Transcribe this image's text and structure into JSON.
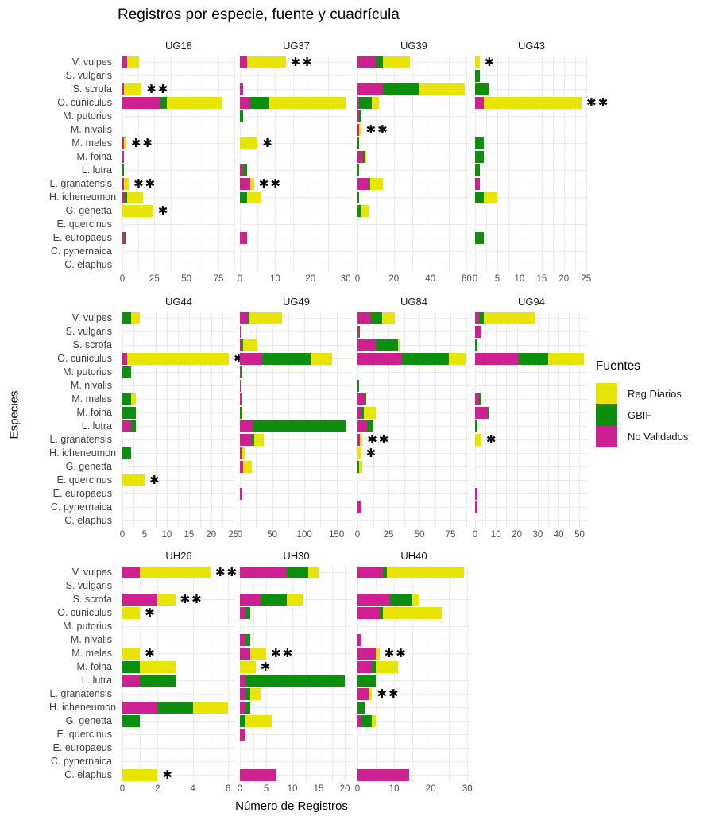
{
  "chart_data": {
    "type": "bar",
    "orientation": "horizontal",
    "stacked": true,
    "title": "Registros por especie, fuente y cuadrícula",
    "xlabel": "Número de Registros",
    "ylabel": "Especies",
    "grid": true,
    "legend": {
      "title": "Fuentes",
      "position": "right",
      "entries": [
        {
          "label": "Reg Diarios",
          "color": "#E8E406"
        },
        {
          "label": "GBIF",
          "color": "#0E8E0E"
        },
        {
          "label": "No Validados",
          "color": "#CD2192"
        }
      ]
    },
    "colors": {
      "no_validados": "#CD2192",
      "gbif": "#0E8E0E",
      "reg_diarios": "#E8E406"
    },
    "stack_order": [
      "no_validados",
      "gbif",
      "reg_diarios"
    ],
    "species": [
      "V. vulpes",
      "S. vulgaris",
      "S. scrofa",
      "O. cuniculus",
      "M. putorius",
      "M. nivalis",
      "M. meles",
      "M. foina",
      "L. lutra",
      "L. granatensis",
      "H. icheneumon",
      "G. genetta",
      "E. quercinus",
      "E. europaeus",
      "C. pynernaica",
      "C. elaphus"
    ],
    "layout": {
      "bands": [
        [
          "UG18",
          "UG37",
          "UG39",
          "UG43"
        ],
        [
          "UG44",
          "UG49",
          "UG84",
          "UG94"
        ],
        [
          "UH26",
          "UH30",
          "UH40"
        ]
      ]
    },
    "facets": [
      {
        "name": "UG18",
        "ticks": [
          0,
          25,
          50,
          75
        ],
        "xmax": 88,
        "values": [
          [
            4,
            0,
            9
          ],
          [
            0,
            0,
            0
          ],
          [
            1,
            0,
            14
          ],
          [
            30,
            5,
            43
          ],
          [
            0,
            0,
            0
          ],
          [
            0,
            0,
            0
          ],
          [
            1,
            0,
            2
          ],
          [
            1,
            0,
            0
          ],
          [
            0,
            1,
            0
          ],
          [
            1,
            0,
            4
          ],
          [
            2,
            2,
            12
          ],
          [
            0,
            0,
            24
          ],
          [
            0,
            0,
            0
          ],
          [
            2,
            1,
            0
          ],
          [
            0,
            0,
            0
          ],
          [
            0,
            0,
            0
          ]
        ],
        "stars": [
          "",
          "",
          "**",
          "",
          "",
          "",
          "**",
          "",
          "",
          "**",
          "",
          "*",
          "",
          "",
          "",
          ""
        ]
      },
      {
        "name": "UG37",
        "ticks": [
          0,
          10,
          20,
          30
        ],
        "xmax": 32,
        "values": [
          [
            2,
            0,
            11
          ],
          [
            0,
            0,
            0
          ],
          [
            1,
            0,
            0
          ],
          [
            3,
            5,
            22
          ],
          [
            0,
            1,
            0
          ],
          [
            0,
            0,
            0
          ],
          [
            0,
            0,
            5
          ],
          [
            0,
            0,
            0
          ],
          [
            1,
            1,
            0
          ],
          [
            3,
            0,
            1
          ],
          [
            0,
            2,
            4
          ],
          [
            0,
            0,
            0
          ],
          [
            0,
            0,
            0
          ],
          [
            2,
            0,
            0
          ],
          [
            0,
            0,
            0
          ],
          [
            0,
            0,
            0
          ]
        ],
        "stars": [
          "**",
          "",
          "",
          "",
          "",
          "",
          "*",
          "",
          "",
          "**",
          "",
          "",
          "",
          "",
          "",
          ""
        ]
      },
      {
        "name": "UG39",
        "ticks": [
          0,
          20,
          40,
          60
        ],
        "xmax": 62,
        "values": [
          [
            10,
            4,
            15
          ],
          [
            0,
            0,
            0
          ],
          [
            14,
            20,
            25
          ],
          [
            1,
            7,
            4
          ],
          [
            1,
            1,
            0
          ],
          [
            1,
            0,
            1
          ],
          [
            0,
            1,
            0
          ],
          [
            3,
            1,
            1
          ],
          [
            0,
            1,
            0
          ],
          [
            6,
            1,
            7
          ],
          [
            0,
            1,
            0
          ],
          [
            0,
            2,
            4
          ],
          [
            0,
            0,
            0
          ],
          [
            0,
            0,
            0
          ],
          [
            0,
            0,
            0
          ],
          [
            0,
            0,
            0
          ]
        ],
        "stars": [
          "",
          "",
          "",
          "",
          "",
          "**",
          "",
          "",
          "",
          "",
          "",
          "",
          "",
          "",
          "",
          ""
        ]
      },
      {
        "name": "UG43",
        "ticks": [
          0,
          5,
          10,
          15,
          20,
          25
        ],
        "xmax": 25.4,
        "values": [
          [
            0,
            0,
            1
          ],
          [
            0,
            1,
            0
          ],
          [
            0,
            3,
            0
          ],
          [
            2,
            0,
            22
          ],
          [
            0,
            0,
            0
          ],
          [
            0,
            0,
            0
          ],
          [
            0,
            2,
            0
          ],
          [
            0,
            2,
            0
          ],
          [
            0,
            1,
            0
          ],
          [
            1,
            0,
            0
          ],
          [
            0,
            2,
            3
          ],
          [
            0,
            0,
            0
          ],
          [
            0,
            0,
            0
          ],
          [
            0,
            2,
            0
          ],
          [
            0,
            0,
            0
          ],
          [
            0,
            0,
            0
          ]
        ],
        "stars": [
          "*",
          "",
          "",
          "**",
          "",
          "",
          "",
          "",
          "",
          "",
          "",
          "",
          "",
          "",
          "",
          ""
        ]
      },
      {
        "name": "UG44",
        "ticks": [
          0,
          5,
          10,
          15,
          20,
          25
        ],
        "xmax": 25.4,
        "values": [
          [
            0,
            2,
            2
          ],
          [
            0,
            0,
            0
          ],
          [
            0,
            0,
            0
          ],
          [
            1,
            0,
            23
          ],
          [
            0,
            2,
            0
          ],
          [
            0,
            0,
            0
          ],
          [
            0,
            2,
            1
          ],
          [
            0,
            3,
            0
          ],
          [
            2,
            1,
            0
          ],
          [
            0,
            0,
            0
          ],
          [
            0,
            2,
            0
          ],
          [
            0,
            0,
            0
          ],
          [
            0,
            0,
            5
          ],
          [
            0,
            0,
            0
          ],
          [
            0,
            0,
            0
          ],
          [
            0,
            0,
            0
          ]
        ],
        "stars": [
          "",
          "",
          "",
          "**",
          "",
          "",
          "",
          "",
          "",
          "",
          "",
          "",
          "*",
          "",
          "",
          ""
        ]
      },
      {
        "name": "UG49",
        "ticks": [
          0,
          50,
          100,
          150
        ],
        "xmax": 175,
        "values": [
          [
            12,
            3,
            50
          ],
          [
            1,
            0,
            0
          ],
          [
            3,
            2,
            22
          ],
          [
            35,
            75,
            33
          ],
          [
            1,
            1,
            0
          ],
          [
            1,
            0,
            0
          ],
          [
            2,
            2,
            0
          ],
          [
            0,
            2,
            2
          ],
          [
            20,
            145,
            0
          ],
          [
            18,
            4,
            15
          ],
          [
            3,
            0,
            5
          ],
          [
            5,
            0,
            13
          ],
          [
            0,
            0,
            0
          ],
          [
            4,
            0,
            0
          ],
          [
            0,
            0,
            0
          ],
          [
            0,
            0,
            0
          ]
        ],
        "stars": [
          "",
          "",
          "",
          "",
          "",
          "",
          "",
          "",
          "",
          "",
          "",
          "",
          "",
          "",
          "",
          ""
        ]
      },
      {
        "name": "UG84",
        "ticks": [
          0,
          25,
          50,
          75
        ],
        "xmax": 91,
        "values": [
          [
            11,
            9,
            10
          ],
          [
            1,
            1,
            0
          ],
          [
            15,
            18,
            1
          ],
          [
            36,
            38,
            13
          ],
          [
            0,
            0,
            0
          ],
          [
            0,
            1,
            0
          ],
          [
            6,
            1,
            0
          ],
          [
            3,
            2,
            10
          ],
          [
            8,
            5,
            0
          ],
          [
            2,
            0,
            2
          ],
          [
            0,
            0,
            3
          ],
          [
            0,
            1,
            3
          ],
          [
            0,
            0,
            0
          ],
          [
            0,
            0,
            0
          ],
          [
            3,
            0,
            0
          ],
          [
            0,
            0,
            0
          ]
        ],
        "stars": [
          "",
          "",
          "",
          "",
          "",
          "",
          "",
          "",
          "",
          "**",
          "*",
          "",
          "",
          "",
          "",
          ""
        ]
      },
      {
        "name": "UG94",
        "ticks": [
          0,
          10,
          20,
          30,
          40,
          50
        ],
        "xmax": 54,
        "values": [
          [
            2,
            2,
            25
          ],
          [
            3,
            0,
            0
          ],
          [
            0,
            1,
            0
          ],
          [
            21,
            14,
            17
          ],
          [
            0,
            0,
            0
          ],
          [
            0,
            0,
            0
          ],
          [
            2,
            1,
            0
          ],
          [
            6,
            1,
            0
          ],
          [
            0,
            1,
            0
          ],
          [
            0,
            0,
            3
          ],
          [
            0,
            0,
            0
          ],
          [
            0,
            0,
            0
          ],
          [
            0,
            0,
            0
          ],
          [
            1,
            0,
            0
          ],
          [
            1,
            0,
            0
          ],
          [
            0,
            0,
            0
          ]
        ],
        "stars": [
          "",
          "",
          "",
          "",
          "",
          "",
          "",
          "",
          "",
          "*",
          "",
          "",
          "",
          "",
          "",
          ""
        ]
      },
      {
        "name": "UH26",
        "ticks": [
          0,
          2,
          4,
          6
        ],
        "xmax": 6.4,
        "values": [
          [
            1,
            0,
            4
          ],
          [
            0,
            0,
            0
          ],
          [
            2,
            0,
            1
          ],
          [
            0,
            0,
            1
          ],
          [
            0,
            0,
            0
          ],
          [
            0,
            0,
            0
          ],
          [
            0,
            0,
            1
          ],
          [
            0,
            1,
            2
          ],
          [
            1,
            2,
            0
          ],
          [
            0,
            0,
            0
          ],
          [
            2,
            2,
            2
          ],
          [
            0,
            1,
            0
          ],
          [
            0,
            0,
            0
          ],
          [
            0,
            0,
            0
          ],
          [
            0,
            0,
            0
          ],
          [
            0,
            0,
            2
          ]
        ],
        "stars": [
          "**",
          "",
          "**",
          "*",
          "",
          "",
          "*",
          "",
          "",
          "",
          "",
          "",
          "",
          "",
          "",
          "*"
        ]
      },
      {
        "name": "UH30",
        "ticks": [
          0,
          5,
          10,
          15,
          20
        ],
        "xmax": 21.5,
        "values": [
          [
            9,
            4,
            2
          ],
          [
            0,
            0,
            0
          ],
          [
            4,
            5,
            3
          ],
          [
            1,
            1,
            0
          ],
          [
            0,
            0,
            0
          ],
          [
            1,
            1,
            0
          ],
          [
            2,
            0,
            3
          ],
          [
            0,
            0,
            3
          ],
          [
            1,
            19,
            0
          ],
          [
            1,
            1,
            2
          ],
          [
            1,
            1,
            0
          ],
          [
            0,
            1,
            5
          ],
          [
            1,
            0,
            0
          ],
          [
            0,
            0,
            0
          ],
          [
            0,
            0,
            0
          ],
          [
            7,
            0,
            0
          ]
        ],
        "stars": [
          "",
          "",
          "",
          "",
          "",
          "",
          "**",
          "*",
          "",
          "",
          "",
          "",
          "",
          "",
          "",
          ""
        ]
      },
      {
        "name": "UH40",
        "ticks": [
          0,
          10,
          20,
          30
        ],
        "xmax": 30.8,
        "values": [
          [
            7,
            1,
            21
          ],
          [
            0,
            0,
            0
          ],
          [
            9,
            6,
            2
          ],
          [
            6,
            1,
            16
          ],
          [
            0,
            0,
            0
          ],
          [
            1,
            0,
            0
          ],
          [
            5,
            0,
            1
          ],
          [
            4,
            1,
            6
          ],
          [
            0,
            5,
            0
          ],
          [
            3,
            0,
            1
          ],
          [
            0,
            2,
            0
          ],
          [
            1,
            3,
            1
          ],
          [
            0,
            0,
            0
          ],
          [
            0,
            0,
            0
          ],
          [
            0,
            0,
            0
          ],
          [
            14,
            0,
            0
          ]
        ],
        "stars": [
          "",
          "",
          "",
          "",
          "",
          "",
          "**",
          "",
          "",
          "**",
          "",
          "",
          "",
          "",
          "",
          ""
        ]
      }
    ]
  }
}
